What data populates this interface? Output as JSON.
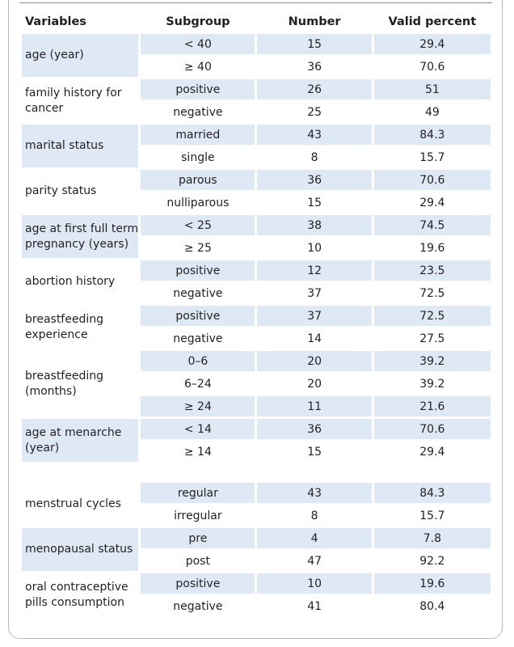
{
  "headers": [
    "Variables",
    "Subgroup",
    "Number",
    "Valid percent"
  ],
  "groups": [
    {
      "variable": "age (year)",
      "rows": [
        [
          "< 40",
          "15",
          "29.4"
        ],
        [
          "≥ 40",
          "36",
          "70.6"
        ]
      ]
    },
    {
      "variable": "family history for cancer",
      "rows": [
        [
          "positive",
          "26",
          "51"
        ],
        [
          "negative",
          "25",
          "49"
        ]
      ]
    },
    {
      "variable": "marital status",
      "rows": [
        [
          "married",
          "43",
          "84.3"
        ],
        [
          "single",
          "8",
          "15.7"
        ]
      ]
    },
    {
      "variable": "parity status",
      "rows": [
        [
          "parous",
          "36",
          "70.6"
        ],
        [
          "nulliparous",
          "15",
          "29.4"
        ]
      ]
    },
    {
      "variable": "age at first full term pregnancy (years)",
      "rows": [
        [
          "< 25",
          "38",
          "74.5"
        ],
        [
          "≥ 25",
          "10",
          "19.6"
        ]
      ]
    },
    {
      "variable": "abortion history",
      "rows": [
        [
          "positive",
          "12",
          "23.5"
        ],
        [
          "negative",
          "37",
          "72.5"
        ]
      ]
    },
    {
      "variable": "breastfeeding experience",
      "rows": [
        [
          "positive",
          "37",
          "72.5"
        ],
        [
          "negative",
          "14",
          "27.5"
        ]
      ]
    },
    {
      "variable": "breastfeeding (months)",
      "rows": [
        [
          "0–6",
          "20",
          "39.2"
        ],
        [
          "6–24",
          "20",
          "39.2"
        ],
        [
          "≥ 24",
          "11",
          "21.6"
        ]
      ]
    },
    {
      "variable": "age at menarche (year)",
      "rows": [
        [
          "< 14",
          "36",
          "70.6"
        ],
        [
          "≥ 14",
          "15",
          "29.4"
        ]
      ]
    },
    {
      "variable": "menstrual cycles",
      "rows": [
        [
          "regular",
          "43",
          "84.3"
        ],
        [
          "irregular",
          "8",
          "15.7"
        ]
      ]
    },
    {
      "variable": "menopausal status",
      "rows": [
        [
          "pre",
          "4",
          "7.8"
        ],
        [
          "post",
          "47",
          "92.2"
        ]
      ]
    },
    {
      "variable": "oral contraceptive pills consumption",
      "rows": [
        [
          "positive",
          "10",
          "19.6"
        ],
        [
          "negative",
          "41",
          "80.4"
        ]
      ]
    }
  ],
  "colors": {
    "shade": "#dfe9f6",
    "border": "#b9b9b9"
  }
}
